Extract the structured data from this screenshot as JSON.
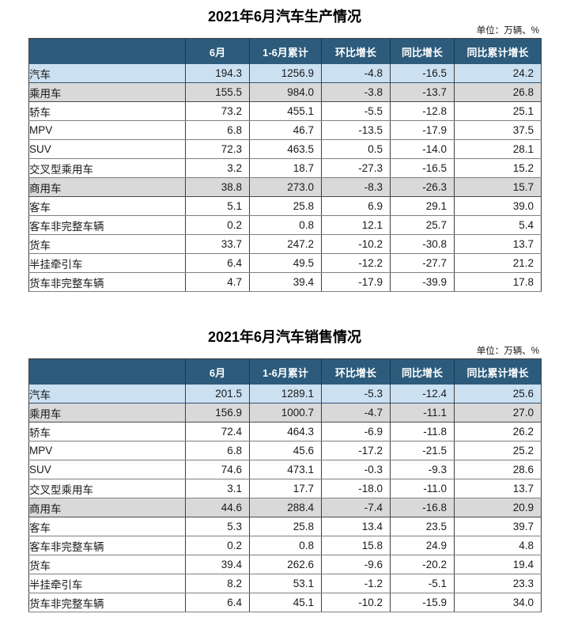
{
  "unit_note": "单位：万辆、%",
  "column_headers": [
    "6月",
    "1-6月累计",
    "环比增长",
    "同比增长",
    "同比累计增长"
  ],
  "colors": {
    "header_bg": "#2C5B7C",
    "header_text": "#FFFFFF",
    "band_blue": "#CBE0F1",
    "band_gray": "#D9D9D9"
  },
  "tables": [
    {
      "title": "2021年6月汽车生产情况",
      "rows": [
        {
          "label": "汽车",
          "indent": 0,
          "band": "blue",
          "values": [
            "194.3",
            "1256.9",
            "-4.8",
            "-16.5",
            "24.2"
          ]
        },
        {
          "label": "乘用车",
          "indent": 1,
          "band": "gray",
          "values": [
            "155.5",
            "984.0",
            "-3.8",
            "-13.7",
            "26.8"
          ]
        },
        {
          "label": "轿车",
          "indent": 2,
          "band": "white",
          "values": [
            "73.2",
            "455.1",
            "-5.5",
            "-12.8",
            "25.1"
          ]
        },
        {
          "label": "MPV",
          "indent": 2,
          "band": "white",
          "values": [
            "6.8",
            "46.7",
            "-13.5",
            "-17.9",
            "37.5"
          ]
        },
        {
          "label": "SUV",
          "indent": 2,
          "band": "white",
          "values": [
            "72.3",
            "463.5",
            "0.5",
            "-14.0",
            "28.1"
          ]
        },
        {
          "label": "交叉型乘用车",
          "indent": 2,
          "band": "white",
          "values": [
            "3.2",
            "18.7",
            "-27.3",
            "-16.5",
            "15.2"
          ]
        },
        {
          "label": "商用车",
          "indent": 1,
          "band": "gray",
          "values": [
            "38.8",
            "273.0",
            "-8.3",
            "-26.3",
            "15.7"
          ]
        },
        {
          "label": "客车",
          "indent": 2,
          "band": "white",
          "values": [
            "5.1",
            "25.8",
            "6.9",
            "29.1",
            "39.0"
          ]
        },
        {
          "label": "客车非完整车辆",
          "indent": 3,
          "band": "white",
          "values": [
            "0.2",
            "0.8",
            "12.1",
            "25.7",
            "5.4"
          ]
        },
        {
          "label": "货车",
          "indent": 2,
          "band": "white",
          "values": [
            "33.7",
            "247.2",
            "-10.2",
            "-30.8",
            "13.7"
          ]
        },
        {
          "label": "半挂牵引车",
          "indent": 3,
          "band": "white",
          "values": [
            "6.4",
            "49.5",
            "-12.2",
            "-27.7",
            "21.2"
          ]
        },
        {
          "label": "货车非完整车辆",
          "indent": 3,
          "band": "white",
          "values": [
            "4.7",
            "39.4",
            "-17.9",
            "-39.9",
            "17.8"
          ]
        }
      ]
    },
    {
      "title": "2021年6月汽车销售情况",
      "rows": [
        {
          "label": "汽车",
          "indent": 0,
          "band": "blue",
          "values": [
            "201.5",
            "1289.1",
            "-5.3",
            "-12.4",
            "25.6"
          ]
        },
        {
          "label": "乘用车",
          "indent": 1,
          "band": "gray",
          "values": [
            "156.9",
            "1000.7",
            "-4.7",
            "-11.1",
            "27.0"
          ]
        },
        {
          "label": "轿车",
          "indent": 2,
          "band": "white",
          "values": [
            "72.4",
            "464.3",
            "-6.9",
            "-11.8",
            "26.2"
          ]
        },
        {
          "label": "MPV",
          "indent": 2,
          "band": "white",
          "values": [
            "6.8",
            "45.6",
            "-17.2",
            "-21.5",
            "25.2"
          ]
        },
        {
          "label": "SUV",
          "indent": 2,
          "band": "white",
          "values": [
            "74.6",
            "473.1",
            "-0.3",
            "-9.3",
            "28.6"
          ]
        },
        {
          "label": "交叉型乘用车",
          "indent": 2,
          "band": "white",
          "values": [
            "3.1",
            "17.7",
            "-18.0",
            "-11.0",
            "13.7"
          ]
        },
        {
          "label": "商用车",
          "indent": 1,
          "band": "gray",
          "values": [
            "44.6",
            "288.4",
            "-7.4",
            "-16.8",
            "20.9"
          ]
        },
        {
          "label": "客车",
          "indent": 2,
          "band": "white",
          "values": [
            "5.3",
            "25.8",
            "13.4",
            "23.5",
            "39.7"
          ]
        },
        {
          "label": "客车非完整车辆",
          "indent": 3,
          "band": "white",
          "values": [
            "0.2",
            "0.8",
            "15.8",
            "24.9",
            "4.8"
          ]
        },
        {
          "label": "货车",
          "indent": 2,
          "band": "white",
          "values": [
            "39.4",
            "262.6",
            "-9.6",
            "-20.2",
            "19.4"
          ]
        },
        {
          "label": "半挂牵引车",
          "indent": 3,
          "band": "white",
          "values": [
            "8.2",
            "53.1",
            "-1.2",
            "-5.1",
            "23.3"
          ]
        },
        {
          "label": "货车非完整车辆",
          "indent": 3,
          "band": "white",
          "values": [
            "6.4",
            "45.1",
            "-10.2",
            "-15.9",
            "34.0"
          ]
        }
      ]
    }
  ]
}
